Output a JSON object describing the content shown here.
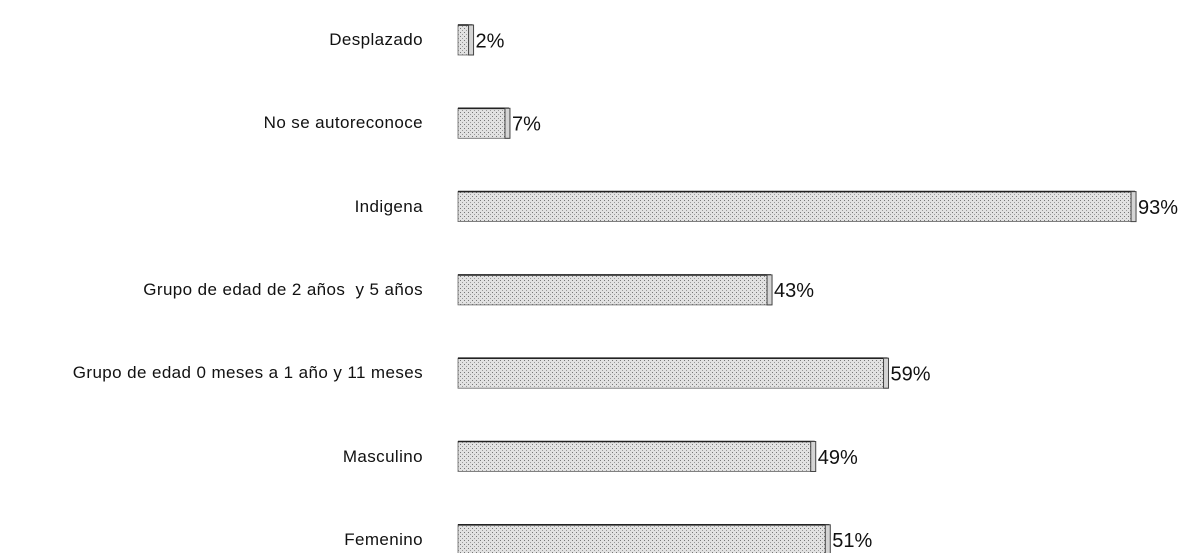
{
  "chart_data": {
    "type": "bar",
    "orientation": "horizontal",
    "categories": [
      "Desplazado",
      "No se autoreconoce",
      "Indigena",
      "Grupo de edad de 2 años  y 5 años",
      "Grupo de edad 0 meses a 1 año y 11 meses",
      "Masculino",
      "Femenino"
    ],
    "values": [
      2,
      7,
      93,
      43,
      59,
      49,
      51
    ],
    "value_labels": [
      "2%",
      "7%",
      "93%",
      "43%",
      "59%",
      "49%",
      "51%"
    ],
    "color": "#d4d4d4"
  }
}
